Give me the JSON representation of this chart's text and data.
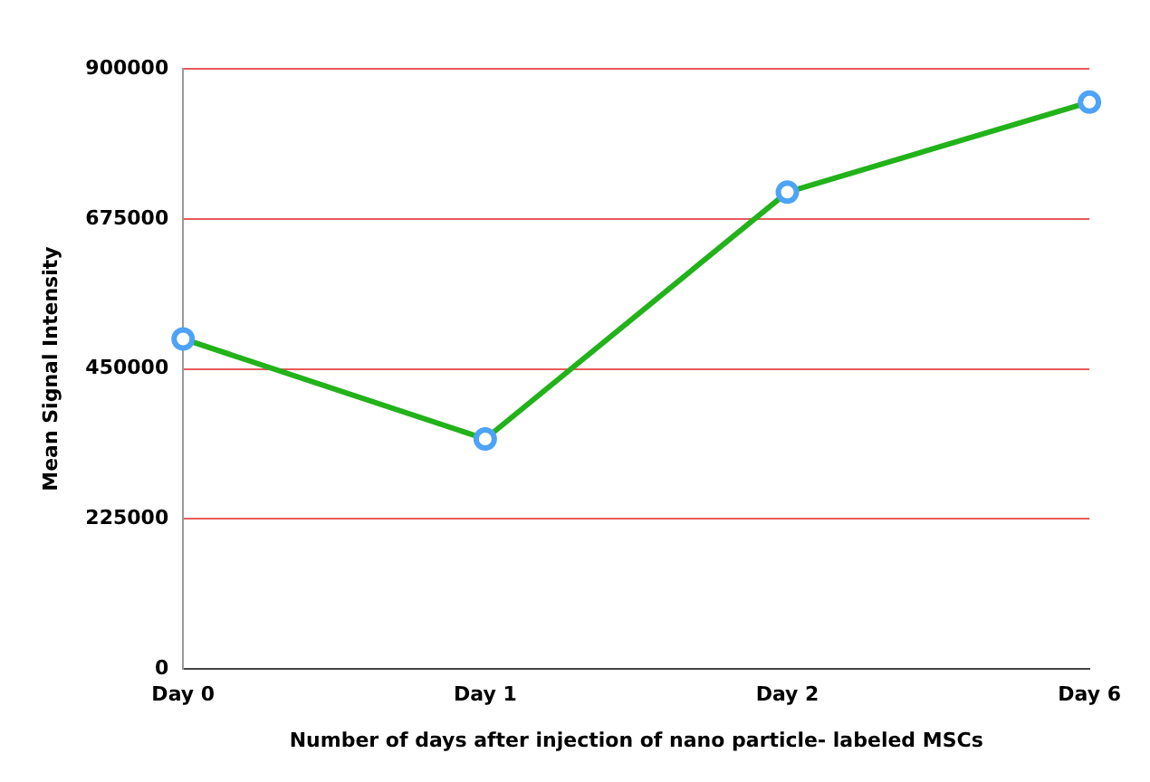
{
  "chart_data": {
    "type": "line",
    "xlabel": "Number of days after injection of nano particle- labeled MSCs",
    "ylabel": "Mean Signal Intensity",
    "categories": [
      "Day 0",
      "Day 1",
      "Day 2",
      "Day 6"
    ],
    "series": [
      {
        "color": "#22b21a",
        "values": [
          495000,
          345000,
          715000,
          850000
        ]
      }
    ],
    "ylim": [
      0,
      900000
    ],
    "yticks": [
      0,
      225000,
      450000,
      675000,
      900000
    ],
    "grid": "y",
    "marker": "circle",
    "line_style": "solid"
  }
}
